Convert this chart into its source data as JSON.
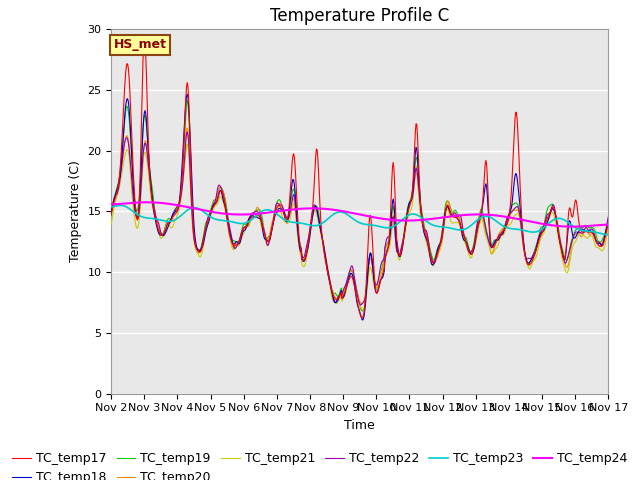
{
  "title": "Temperature Profile C",
  "xlabel": "Time",
  "ylabel": "Temperature (C)",
  "ylim": [
    0,
    30
  ],
  "yticks": [
    0,
    5,
    10,
    15,
    20,
    25,
    30
  ],
  "xtick_labels": [
    "Nov 2",
    "Nov 3",
    "Nov 4",
    "Nov 5",
    "Nov 6",
    "Nov 7",
    "Nov 8",
    "Nov 9",
    "Nov 10",
    "Nov 11",
    "Nov 12",
    "Nov 13",
    "Nov 14",
    "Nov 15",
    "Nov 16",
    "Nov 17"
  ],
  "annotation_text": "HS_met",
  "series_colors": {
    "TC_temp17": "#ff0000",
    "TC_temp18": "#0000cc",
    "TC_temp19": "#00cc00",
    "TC_temp20": "#ff8800",
    "TC_temp21": "#cccc00",
    "TC_temp22": "#9900aa",
    "TC_temp23": "#00cccc",
    "TC_temp24": "#ff00ff"
  },
  "background_color": "#e8e8e8",
  "title_fontsize": 12,
  "label_fontsize": 9,
  "tick_fontsize": 8,
  "legend_fontsize": 9
}
